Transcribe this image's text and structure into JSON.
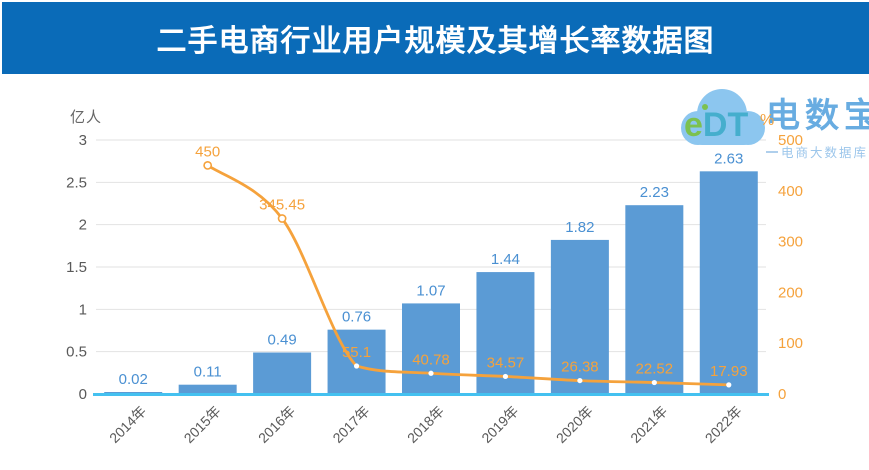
{
  "banner": {
    "bg_color": "#0A6BB8"
  },
  "logo": {
    "mark_e": "e",
    "mark_dt": "DT",
    "name": "电数宝",
    "subtitle": "电商大数据库"
  },
  "colors": {
    "banner_blue": "#0A6BB8",
    "bar_blue": "#5B9BD5",
    "bar_label_blue": "#4A90D2",
    "line_orange": "#F5A23C",
    "axis_cyan": "#44C1F0",
    "axis_text_gray": "#595959",
    "gridline_gray": "#E2E2E2"
  },
  "chart_data": {
    "type": "bar",
    "title": "二手电商行业用户规模及其增长率数据图",
    "categories": [
      "2014年",
      "2015年",
      "2016年",
      "2017年",
      "2018年",
      "2019年",
      "2020年",
      "2021年",
      "2022年"
    ],
    "bar_series": {
      "axis": "left",
      "unit": "亿人",
      "values": [
        0.02,
        0.11,
        0.49,
        0.76,
        1.07,
        1.44,
        1.82,
        2.23,
        2.63
      ],
      "labels": [
        "0.02",
        "0.11",
        "0.49",
        "0.76",
        "1.07",
        "1.44",
        "1.82",
        "2.23",
        "2.63"
      ],
      "color": "#5B9BD5",
      "label_color": "#4A90D2"
    },
    "line_series": {
      "axis": "right",
      "unit": "%",
      "values": [
        null,
        450,
        345.45,
        55.1,
        40.78,
        34.57,
        26.38,
        22.52,
        17.93
      ],
      "labels": [
        null,
        "450",
        "345.45",
        "55.1",
        "40.78",
        "34.57",
        "26.38",
        "22.52",
        "17.93"
      ],
      "color": "#F5A23C"
    },
    "left_axis": {
      "unit": "亿人",
      "ticks": [
        "3",
        "2.5",
        "2",
        "1.5",
        "1",
        "0.5",
        "0"
      ],
      "min": 0,
      "max": 3
    },
    "right_axis": {
      "unit": "%",
      "ticks": [
        "500",
        "400",
        "300",
        "200",
        "100",
        "0"
      ],
      "min": 0,
      "max": 500
    },
    "grid": true,
    "legend": false
  }
}
